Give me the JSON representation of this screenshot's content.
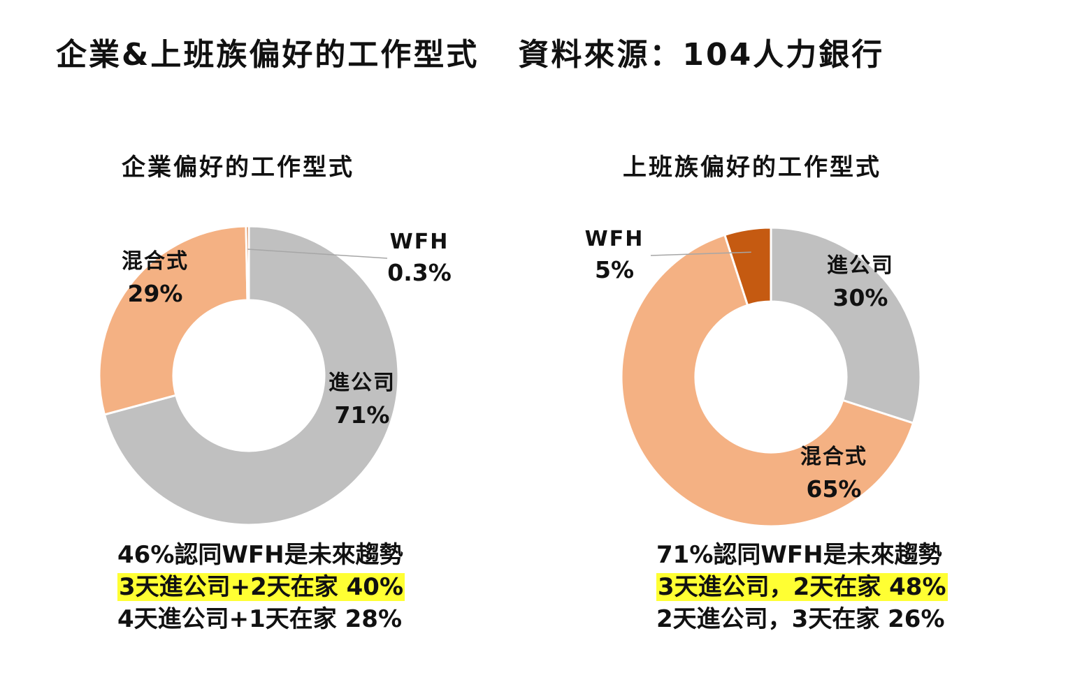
{
  "header": {
    "title": "企業&上班族偏好的工作型式",
    "source": "資料來源：104人力銀行"
  },
  "chart_data": [
    {
      "type": "pie",
      "donut": true,
      "title": "企業偏好的工作型式",
      "start_angle_deg": 0,
      "slices": [
        {
          "name": "進公司",
          "value": 71,
          "label": "71%",
          "color": "#c0c0c0"
        },
        {
          "name": "混合式",
          "value": 29,
          "label": "29%",
          "color": "#f4b183"
        },
        {
          "name": "WFH",
          "value": 0.3,
          "label": "0.3%",
          "color": "#c55a11"
        }
      ],
      "notes": [
        {
          "text": "46%認同WFH是未來趨勢",
          "highlight": false
        },
        {
          "text": "3天進公司+2天在家 40%",
          "highlight": true
        },
        {
          "text": "4天進公司+1天在家 28%",
          "highlight": false
        }
      ]
    },
    {
      "type": "pie",
      "donut": true,
      "title": "上班族偏好的工作型式",
      "start_angle_deg": 0,
      "slices": [
        {
          "name": "進公司",
          "value": 30,
          "label": "30%",
          "color": "#c0c0c0"
        },
        {
          "name": "混合式",
          "value": 65,
          "label": "65%",
          "color": "#f4b183"
        },
        {
          "name": "WFH",
          "value": 5,
          "label": "5%",
          "color": "#c55a11"
        }
      ],
      "notes": [
        {
          "text": "71%認同WFH是未來趨勢",
          "highlight": false
        },
        {
          "text": "3天進公司，2天在家 48%",
          "highlight": true
        },
        {
          "text": "2天進公司，3天在家 26%",
          "highlight": false
        }
      ]
    }
  ]
}
